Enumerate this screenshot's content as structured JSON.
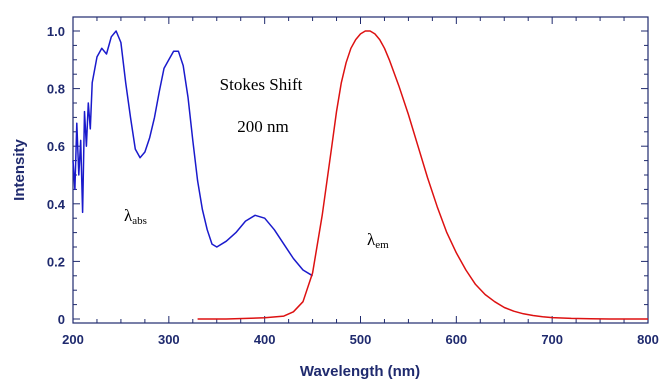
{
  "chart_data": {
    "type": "line",
    "xlabel": "Wavelength (nm)",
    "ylabel": "Intensity",
    "xlim": [
      200,
      800
    ],
    "ylim": [
      0,
      1.05
    ],
    "x_ticks": [
      "200",
      "300",
      "400",
      "500",
      "600",
      "700",
      "800"
    ],
    "y_ticks": [
      "0",
      "0.2",
      "0.4",
      "0.6",
      "0.8",
      "1.0"
    ],
    "grid": false,
    "colors": {
      "absorption": "#1a1acc",
      "emission": "#dd1111",
      "axes": "#1f2a6e"
    },
    "series": [
      {
        "label_main": "λ",
        "label_sub": "abs",
        "color": "#1a1acc",
        "x": [
          200,
          202,
          204,
          206,
          208,
          210,
          212,
          214,
          216,
          218,
          220,
          225,
          230,
          235,
          240,
          245,
          250,
          255,
          260,
          265,
          270,
          275,
          280,
          285,
          290,
          295,
          300,
          305,
          310,
          315,
          320,
          325,
          330,
          335,
          340,
          345,
          350,
          360,
          370,
          380,
          390,
          400,
          410,
          420,
          430,
          440,
          450
        ],
        "y": [
          0.55,
          0.45,
          0.68,
          0.5,
          0.62,
          0.37,
          0.72,
          0.6,
          0.75,
          0.66,
          0.82,
          0.91,
          0.94,
          0.92,
          0.98,
          1.0,
          0.96,
          0.82,
          0.7,
          0.59,
          0.56,
          0.58,
          0.63,
          0.7,
          0.79,
          0.87,
          0.9,
          0.93,
          0.93,
          0.88,
          0.77,
          0.62,
          0.48,
          0.38,
          0.31,
          0.26,
          0.25,
          0.27,
          0.3,
          0.34,
          0.36,
          0.35,
          0.31,
          0.26,
          0.21,
          0.17,
          0.15
        ]
      },
      {
        "label_main": "λ",
        "label_sub": "em",
        "color": "#dd1111",
        "x": [
          330,
          360,
          400,
          420,
          430,
          440,
          450,
          460,
          470,
          475,
          480,
          485,
          490,
          495,
          500,
          505,
          510,
          515,
          520,
          525,
          530,
          540,
          550,
          560,
          570,
          580,
          590,
          600,
          610,
          620,
          630,
          640,
          650,
          660,
          670,
          680,
          690,
          700,
          720,
          740,
          760,
          780,
          800
        ],
        "y": [
          0.0,
          0.0,
          0.004,
          0.01,
          0.025,
          0.06,
          0.16,
          0.36,
          0.6,
          0.72,
          0.82,
          0.89,
          0.94,
          0.97,
          0.99,
          1.0,
          1.0,
          0.99,
          0.97,
          0.94,
          0.9,
          0.81,
          0.71,
          0.6,
          0.49,
          0.39,
          0.3,
          0.23,
          0.17,
          0.12,
          0.085,
          0.06,
          0.04,
          0.027,
          0.018,
          0.012,
          0.008,
          0.005,
          0.002,
          0.001,
          0.0,
          0.0,
          0.0
        ]
      }
    ],
    "annotations": [
      "Stokes Shift",
      "200 nm"
    ]
  }
}
